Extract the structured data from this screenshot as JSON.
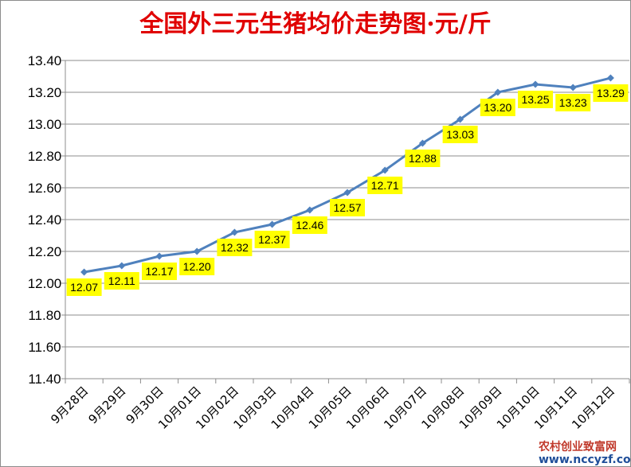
{
  "chart_data": {
    "type": "line",
    "title": "全国外三元生猪均价走势图·元/斤",
    "categories": [
      "9月28日",
      "9月29日",
      "9月30日",
      "10月01日",
      "10月02日",
      "10月03日",
      "10月04日",
      "10月05日",
      "10月06日",
      "10月07日",
      "10月08日",
      "10月09日",
      "10月10日",
      "10月11日",
      "10月12日"
    ],
    "series": [
      {
        "values": [
          12.07,
          12.11,
          12.17,
          12.2,
          12.32,
          12.37,
          12.46,
          12.57,
          12.71,
          12.88,
          13.03,
          13.2,
          13.25,
          13.23,
          13.29
        ]
      }
    ],
    "data_labels": [
      "12.07",
      "12.11",
      "12.17",
      "12.20",
      "12.32",
      "12.37",
      "12.46",
      "12.57",
      "12.71",
      "12.88",
      "13.03",
      "13.20",
      "13.25",
      "13.23",
      "13.29"
    ],
    "ylim": [
      11.4,
      13.4
    ],
    "ytick_values": [
      11.4,
      11.6,
      11.8,
      12.0,
      12.2,
      12.4,
      12.6,
      12.8,
      13.0,
      13.2,
      13.4
    ],
    "ytick_labels": [
      "11.40",
      "11.60",
      "11.80",
      "12.00",
      "12.20",
      "12.40",
      "12.60",
      "12.80",
      "13.00",
      "13.20",
      "13.40"
    ],
    "grid": true,
    "legend": "none",
    "line_color": "#4f81bd",
    "label_bg": "#ffff00"
  },
  "watermark": {
    "line1": "农村创业致富网",
    "line2": "www.nccyzf.com"
  }
}
